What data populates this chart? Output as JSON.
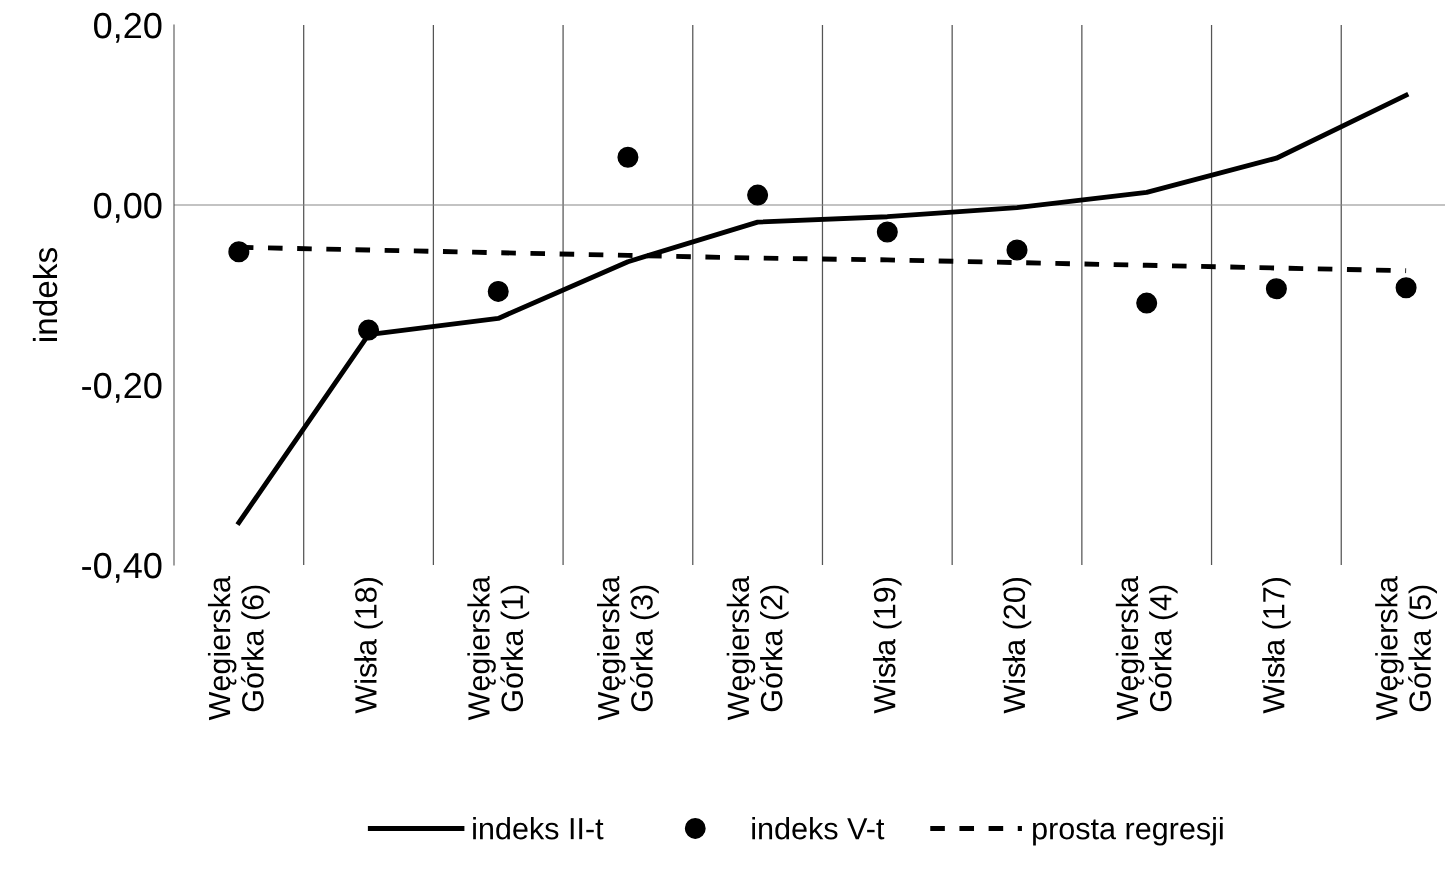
{
  "chart_data": {
    "type": "line",
    "ylabel": "indeks",
    "categories": [
      "Węgierska Górka (6)",
      "Wisła (18)",
      "Węgierska Górka (1)",
      "Węgierska Górka (3)",
      "Węgierska Górka (2)",
      "Wisła (19)",
      "Wisła (20)",
      "Węgierska Górka (4)",
      "Wisła (17)",
      "Węgierska Górka (5)"
    ],
    "series": [
      {
        "name": "indeks II-t",
        "color": "#000000",
        "line_style": "solid",
        "marker": "none",
        "values": [
          -0.353,
          -0.144,
          -0.126,
          -0.063,
          -0.019,
          -0.013,
          -0.003,
          0.014,
          0.052,
          0.122
        ]
      },
      {
        "name": "indeks V-t",
        "type": "scatter",
        "color": "#000000",
        "marker": "circle",
        "values": [
          -0.052,
          -0.139,
          -0.096,
          0.053,
          0.011,
          -0.03,
          -0.05,
          -0.109,
          -0.093,
          -0.092
        ]
      },
      {
        "name": "prosta regresji",
        "color": "#000000",
        "line_style": "dashed",
        "marker": "none",
        "values": [
          -0.047,
          -0.05,
          -0.053,
          -0.056,
          -0.059,
          -0.061,
          -0.064,
          -0.067,
          -0.07,
          -0.073
        ]
      }
    ],
    "ylim": [
      -0.4,
      0.2
    ],
    "yticks": [
      {
        "value": 0.2,
        "label": "0,20"
      },
      {
        "value": 0.0,
        "label": "0,00"
      },
      {
        "value": -0.2,
        "label": "-0,20"
      },
      {
        "value": -0.4,
        "label": "-0,40"
      }
    ],
    "ref_lines": [
      {
        "axis": "y",
        "value": 0.0,
        "label": null,
        "color": "#888888"
      }
    ],
    "grid": "x",
    "legend": "bottom"
  }
}
